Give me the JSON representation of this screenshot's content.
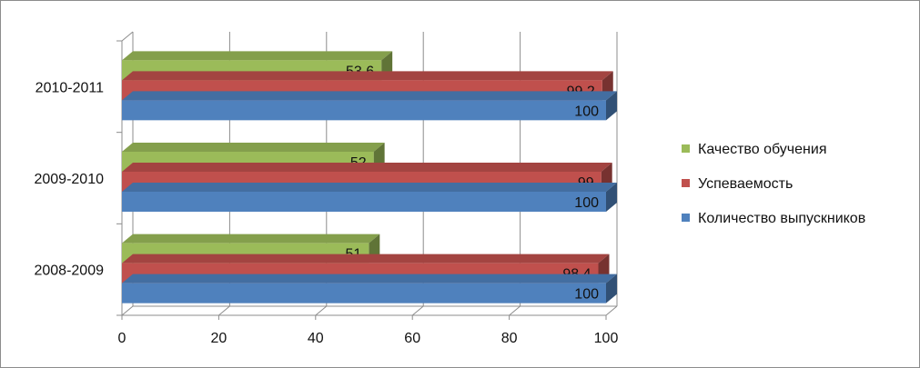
{
  "chart_data": {
    "type": "bar",
    "orientation": "horizontal",
    "three_d": true,
    "title": "",
    "xlabel": "",
    "ylabel": "",
    "categories": [
      "2008-2009",
      "2009-2010",
      "2010-2011"
    ],
    "series": [
      {
        "name": "Количество выпускников",
        "color": "#4f81bd",
        "values": [
          100,
          100,
          100
        ],
        "labels": [
          "100",
          "100",
          "100"
        ]
      },
      {
        "name": "Успеваемость",
        "color": "#c0504d",
        "values": [
          98.4,
          99,
          99.2
        ],
        "labels": [
          "98,4",
          "99",
          "99,2"
        ]
      },
      {
        "name": "Качество обучения",
        "color": "#9bbb59",
        "values": [
          51,
          52,
          53.6
        ],
        "labels": [
          "51",
          "52",
          "53,6"
        ]
      }
    ],
    "xlim": [
      0,
      100
    ],
    "xticks": [
      "0",
      "20",
      "40",
      "60",
      "80",
      "100"
    ],
    "grid": true,
    "legend_position": "right"
  }
}
